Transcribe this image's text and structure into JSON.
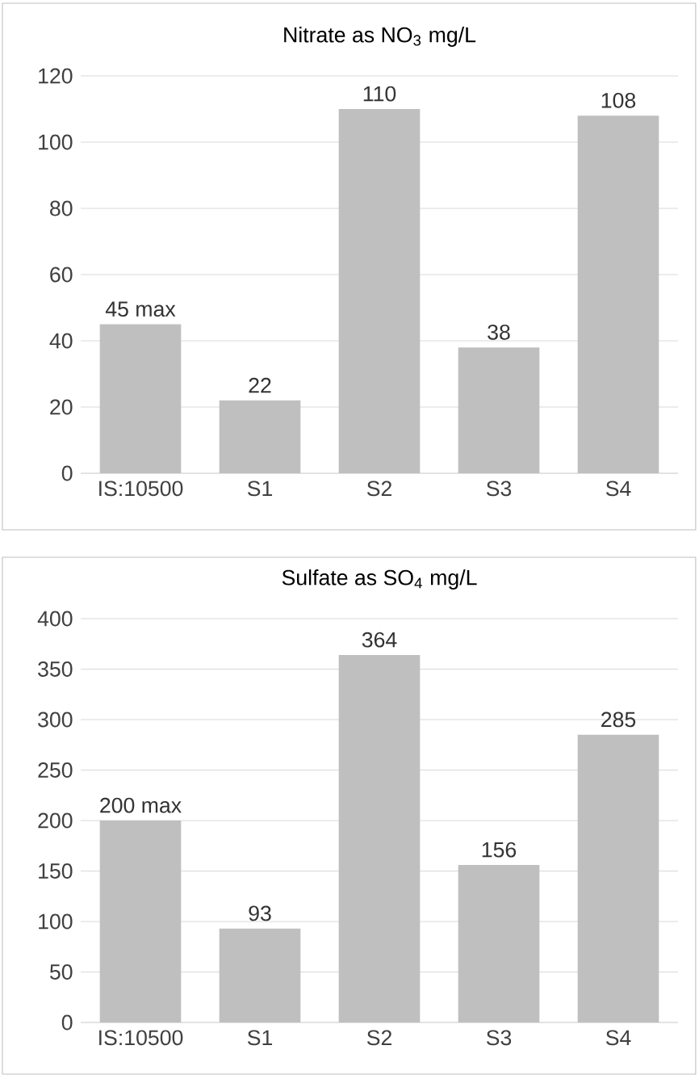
{
  "chart_data": [
    {
      "type": "bar",
      "title": "Nitrate as NO$_{3}$ mg/L",
      "categories": [
        "IS:10500",
        "S1",
        "S2",
        "S3",
        "S4"
      ],
      "values": [
        45,
        22,
        110,
        38,
        108
      ],
      "value_labels": [
        "45 max",
        "22",
        "110",
        "38",
        "108"
      ],
      "color": "#bfbfbf",
      "ylim": [
        0,
        120
      ],
      "yticks": [
        0,
        20,
        40,
        60,
        80,
        100,
        120
      ],
      "grid": "y"
    },
    {
      "type": "bar",
      "title": "Sulfate as SO$_{4}$ mg/L",
      "categories": [
        "IS:10500",
        "S1",
        "S2",
        "S3",
        "S4"
      ],
      "values": [
        200,
        93,
        364,
        156,
        285
      ],
      "value_labels": [
        "200 max",
        "93",
        "364",
        "156",
        "285"
      ],
      "color": "#bfbfbf",
      "ylim": [
        0,
        400
      ],
      "yticks": [
        0,
        50,
        100,
        150,
        200,
        250,
        300,
        350,
        400
      ],
      "grid": "y"
    }
  ]
}
